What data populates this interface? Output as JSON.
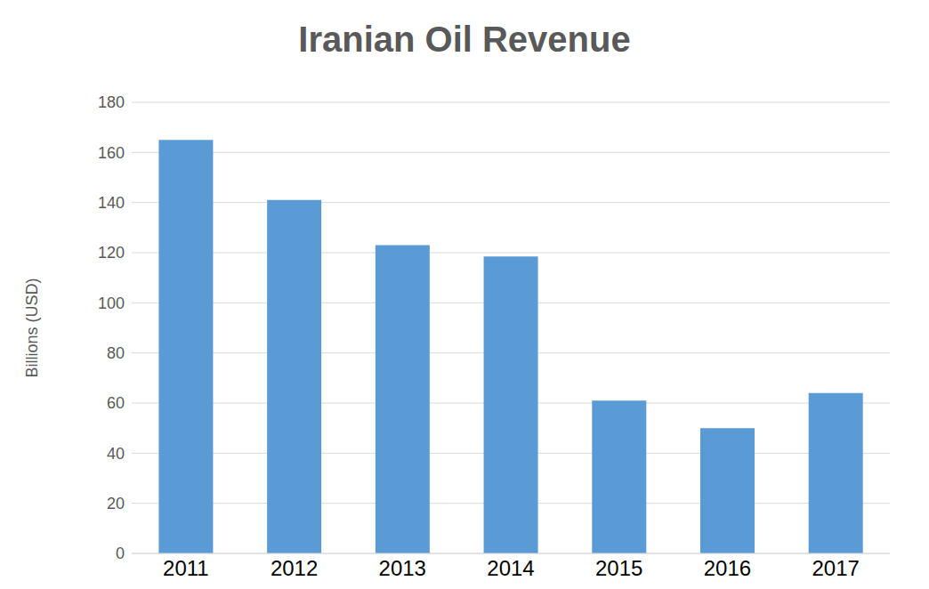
{
  "chart_data": {
    "type": "bar",
    "title": "Iranian Oil Revenue",
    "y_label": "Billions (USD)",
    "categories": [
      "2011",
      "2012",
      "2013",
      "2014",
      "2015",
      "2016",
      "2017"
    ],
    "values": [
      165,
      141,
      123,
      118.5,
      61,
      50,
      64
    ],
    "color": "#5b9bd5",
    "ylim": [
      0,
      180
    ],
    "yticks": [
      0,
      20,
      40,
      60,
      80,
      100,
      120,
      140,
      160,
      180
    ],
    "grid": true
  }
}
